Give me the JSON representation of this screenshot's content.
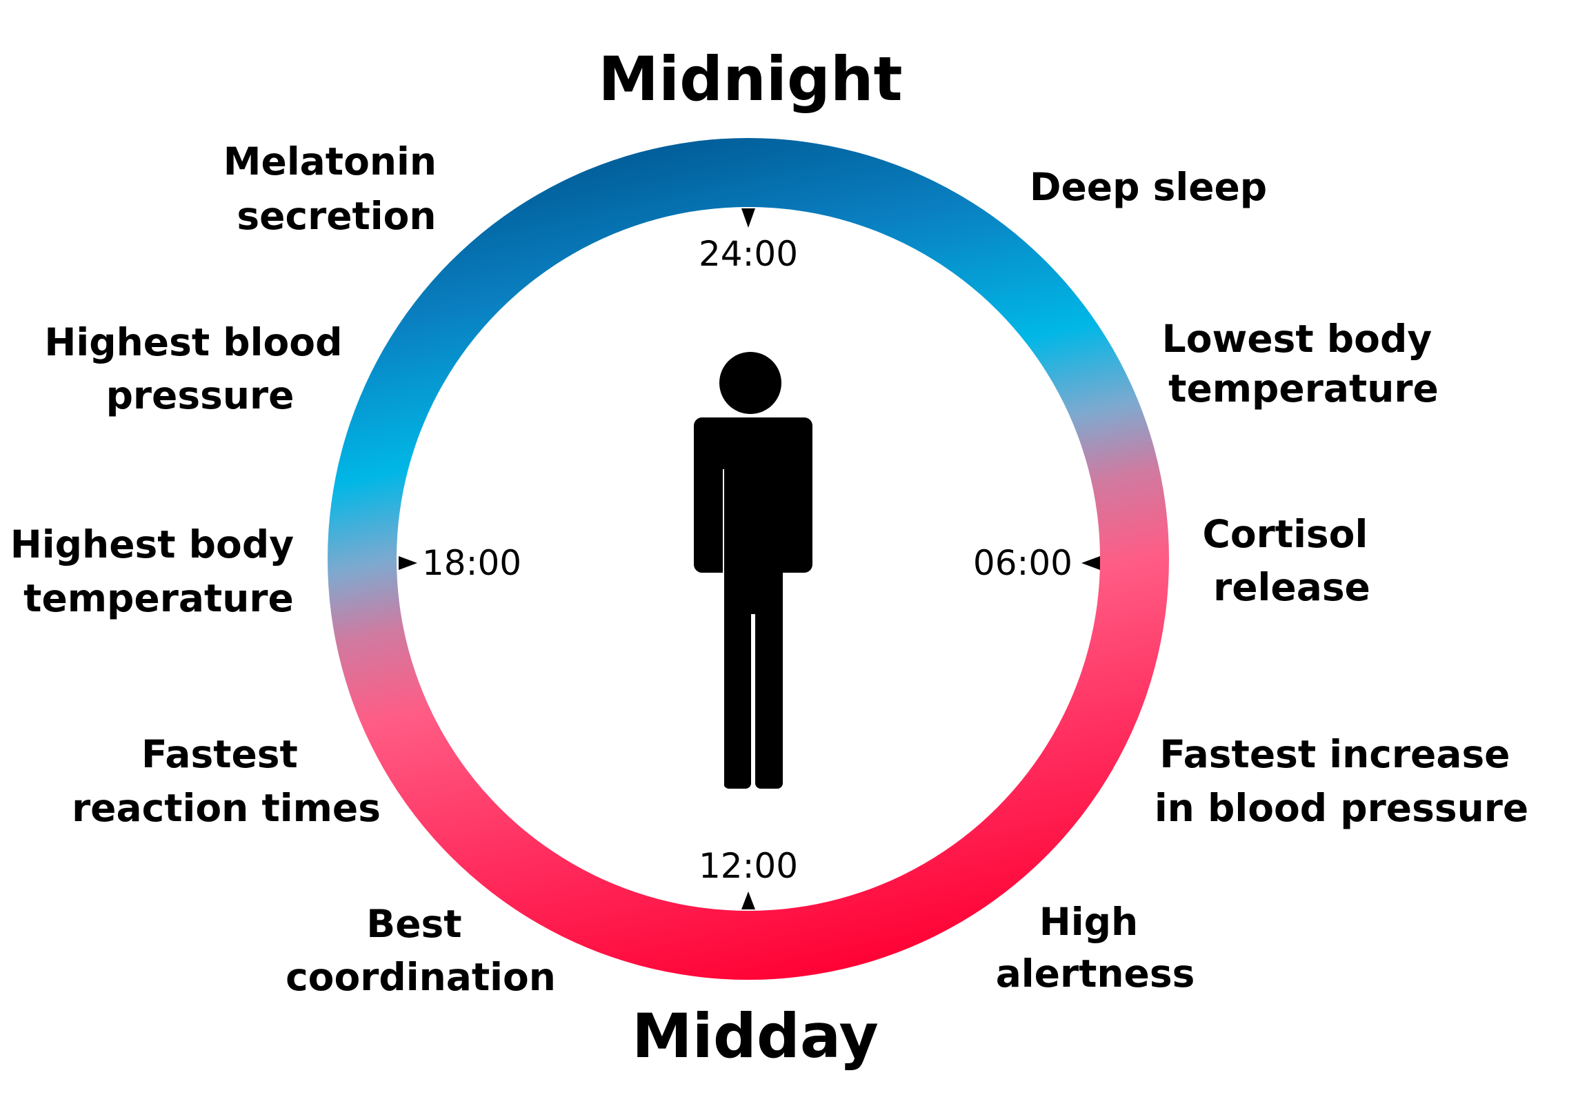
{
  "diagram": {
    "top_label": "Midnight",
    "bottom_label": "Midday",
    "times": {
      "t2400": "24:00",
      "t0600": "06:00",
      "t1200": "12:00",
      "t1800": "18:00"
    },
    "events": {
      "melatonin": [
        "Melatonin",
        "secretion"
      ],
      "deep_sleep": [
        "Deep sleep"
      ],
      "lowest_temp": [
        "Lowest body",
        "temperature"
      ],
      "cortisol": [
        "Cortisol",
        "release"
      ],
      "fastest_bp": [
        "Fastest increase",
        "in blood pressure"
      ],
      "alertness": [
        "High",
        "alertness"
      ],
      "coordination": [
        "Best",
        "coordination"
      ],
      "reaction": [
        "Fastest",
        "reaction times"
      ],
      "highest_temp": [
        "Highest body",
        "temperature"
      ],
      "highest_bp": [
        "Highest blood",
        "pressure"
      ]
    },
    "colors": {
      "night_dark_blue": "#005b96",
      "night_light_blue": "#00b7e6",
      "transition_purple": "#c97fa8",
      "day_pink": "#ff5c85",
      "day_red": "#ff0033",
      "figure": "#000000"
    }
  }
}
